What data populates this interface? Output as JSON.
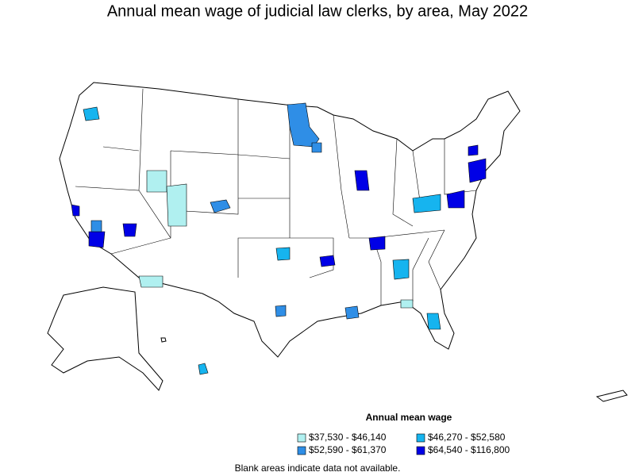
{
  "title": "Annual mean wage of judicial law clerks, by area, May 2022",
  "legend": {
    "title": "Annual mean wage",
    "items": [
      {
        "label": "$37,530 - $46,140",
        "color": "#b0f0f0"
      },
      {
        "label": "$46,270 - $52,580",
        "color": "#16b4ef"
      },
      {
        "label": "$52,590 - $61,370",
        "color": "#2f8ee6"
      },
      {
        "label": "$64,540 - $116,800",
        "color": "#0000e6"
      }
    ]
  },
  "note": "Blank areas indicate data not available."
}
